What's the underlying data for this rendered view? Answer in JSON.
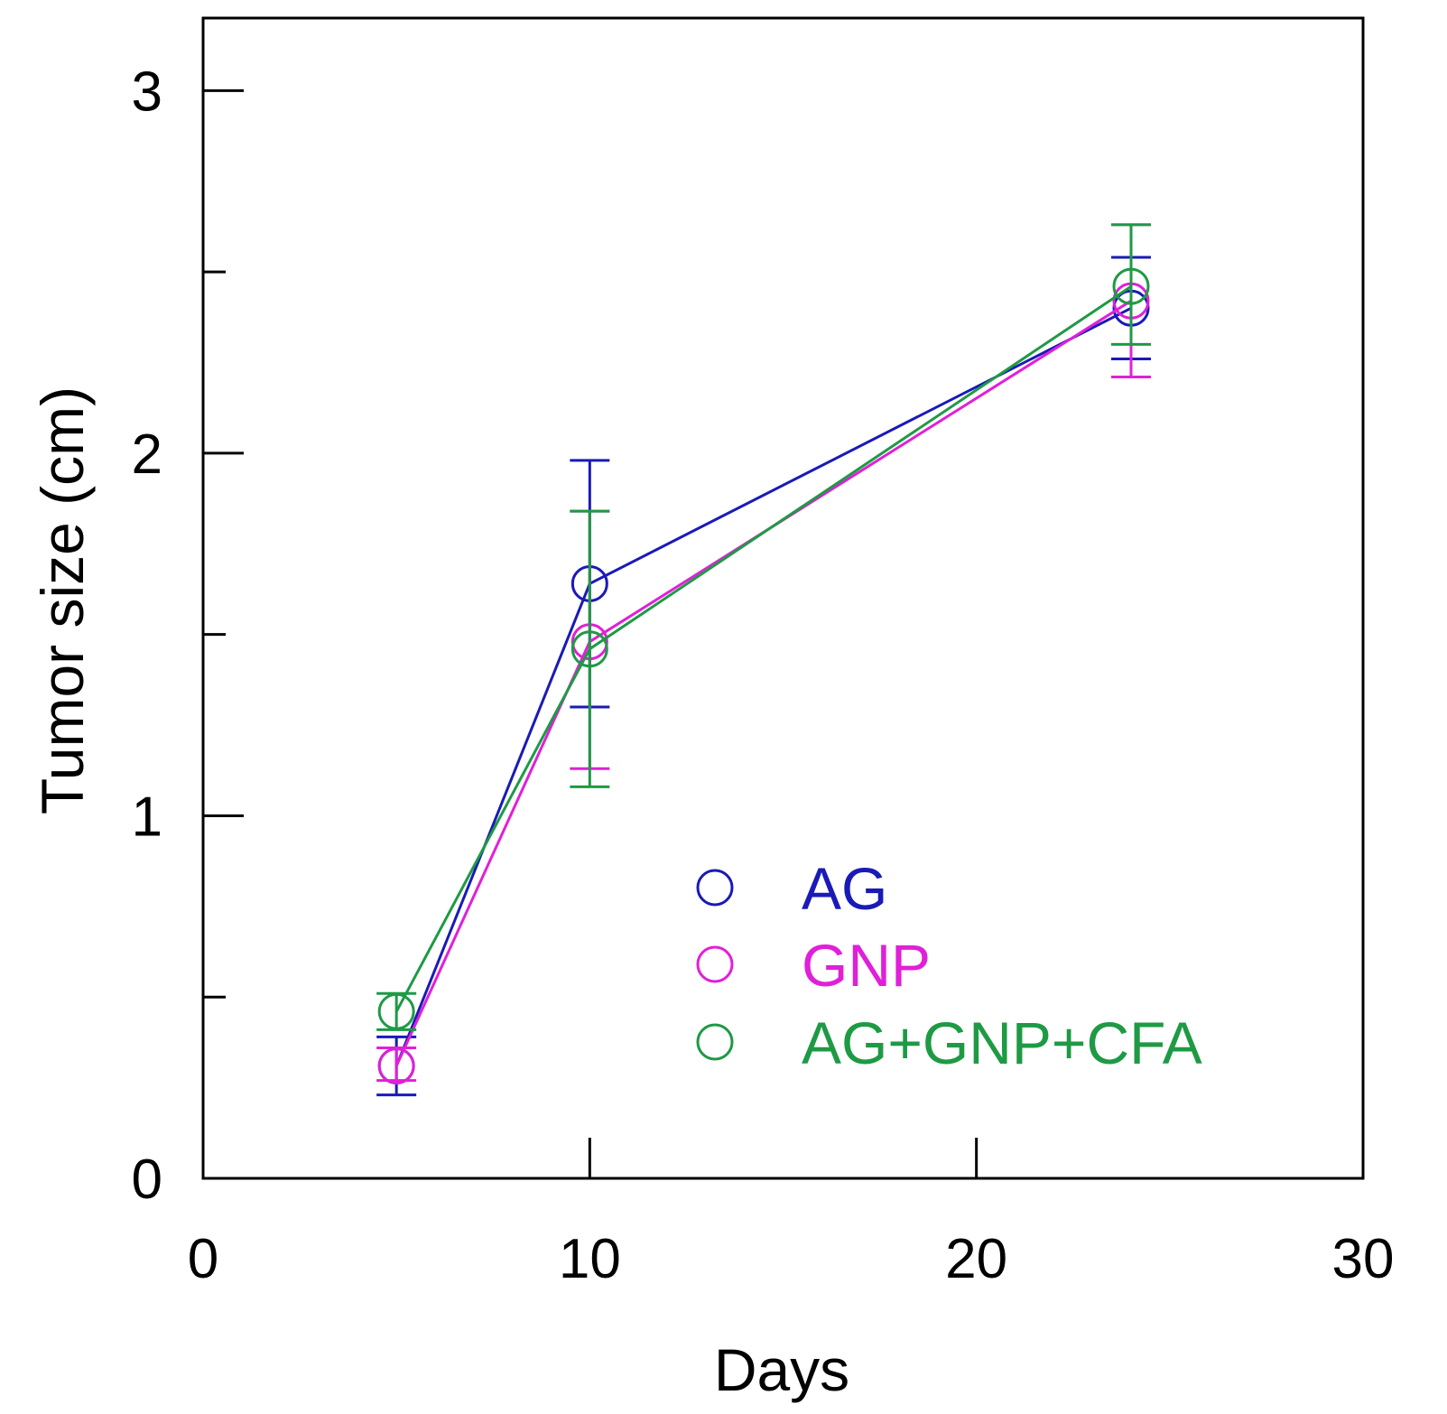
{
  "chart_data": {
    "type": "line",
    "xlabel": "Days",
    "ylabel": "Tumor size (cm)",
    "xlim": [
      0,
      30
    ],
    "ylim": [
      0,
      3.2
    ],
    "x_ticks": [
      0,
      10,
      20,
      30
    ],
    "y_ticks": [
      0,
      1,
      2,
      3
    ],
    "y_minor_ticks": [
      0.5,
      1.5,
      2.5
    ],
    "grid": false,
    "legend_position": "bottom-right",
    "series": [
      {
        "name": "AG",
        "color": "#1a1ab8",
        "marker": "open-circle",
        "points": [
          {
            "x": 5,
            "y": 0.31,
            "err_low": 0.23,
            "err_high": 0.39
          },
          {
            "x": 10,
            "y": 1.64,
            "err_low": 1.3,
            "err_high": 1.98
          },
          {
            "x": 24,
            "y": 2.4,
            "err_low": 2.26,
            "err_high": 2.54
          }
        ]
      },
      {
        "name": "GNP",
        "color": "#e020d8",
        "marker": "open-circle",
        "points": [
          {
            "x": 5,
            "y": 0.31,
            "err_low": 0.27,
            "err_high": 0.36
          },
          {
            "x": 10,
            "y": 1.48,
            "err_low": 1.13,
            "err_high": 1.84
          },
          {
            "x": 24,
            "y": 2.42,
            "err_low": 2.21,
            "err_high": 2.63
          }
        ]
      },
      {
        "name": "AG+GNP+CFA",
        "color": "#1e9a44",
        "marker": "open-circle",
        "points": [
          {
            "x": 5,
            "y": 0.46,
            "err_low": 0.41,
            "err_high": 0.51
          },
          {
            "x": 10,
            "y": 1.46,
            "err_low": 1.08,
            "err_high": 1.84
          },
          {
            "x": 24,
            "y": 2.46,
            "err_low": 2.3,
            "err_high": 2.63
          }
        ]
      }
    ]
  }
}
